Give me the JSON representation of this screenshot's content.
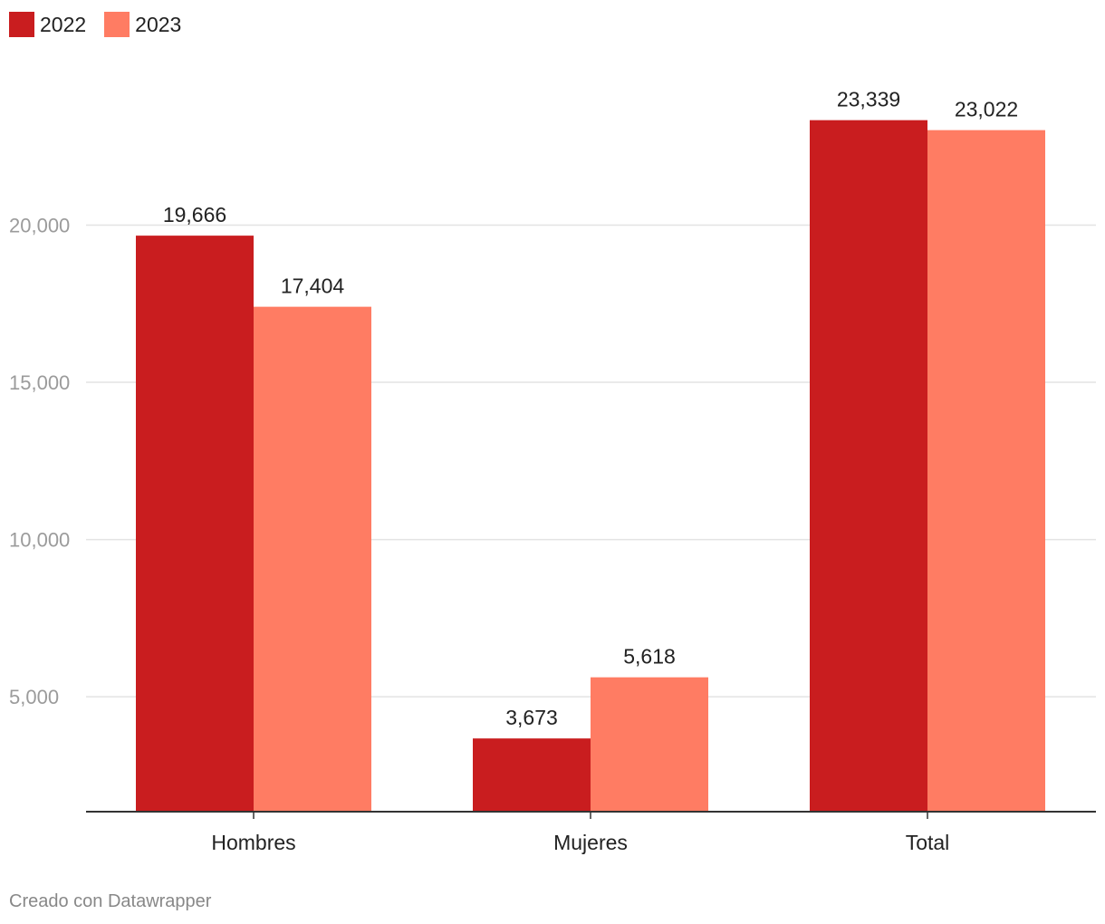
{
  "chart_data": {
    "type": "bar",
    "categories": [
      "Hombres",
      "Mujeres",
      "Total"
    ],
    "series": [
      {
        "name": "2022",
        "color": "#c91d1f",
        "values": [
          19666,
          3673,
          23339
        ]
      },
      {
        "name": "2023",
        "color": "#ff7c63",
        "values": [
          17404,
          5618,
          23022
        ]
      }
    ],
    "data_labels": [
      [
        "19,666",
        "3,673",
        "23,339"
      ],
      [
        "17,404",
        "5,618",
        "23,022"
      ]
    ],
    "y_ticks": [
      5000,
      10000,
      15000,
      20000
    ],
    "y_tick_labels": [
      "5,000",
      "10,000",
      "15,000",
      "20,000"
    ],
    "ylim": [
      1344,
      25000
    ],
    "grid": true,
    "legend_position": "top-left",
    "title": "",
    "xlabel": "",
    "ylabel": ""
  },
  "footer": {
    "credit": "Creado con Datawrapper"
  }
}
